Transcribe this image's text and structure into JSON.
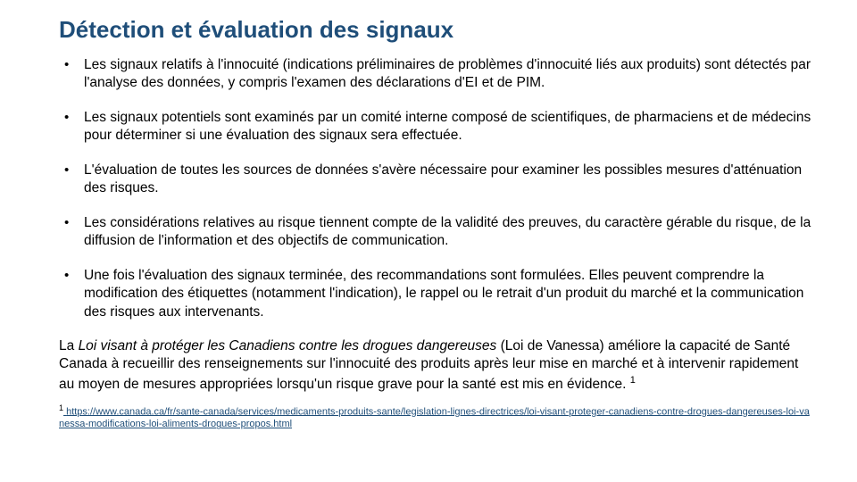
{
  "title": "Détection et évaluation des signaux",
  "bullets": [
    "Les signaux relatifs à l'innocuité (indications préliminaires de problèmes d'innocuité liés aux produits) sont détectés par l'analyse des données, y compris l'examen des déclarations d'EI et de PIM.",
    "Les signaux potentiels sont examinés par un comité interne composé de scientifiques, de pharmaciens et de médecins pour déterminer si une évaluation des signaux sera effectuée.",
    "L'évaluation de toutes les sources de données s'avère nécessaire pour examiner les possibles mesures d'atténuation des risques.",
    "Les considérations relatives au risque tiennent compte de la validité des preuves, du caractère gérable du risque, de la diffusion de l'information et des objectifs de communication.",
    "Une fois l'évaluation des signaux terminée, des recommandations sont formulées. Elles peuvent comprendre la modification des étiquettes (notamment l'indication), le rappel ou le retrait d'un produit du marché et la communication des risques aux intervenants."
  ],
  "paragraph_prefix": "La ",
  "paragraph_law": "Loi visant à protéger les Canadiens contre les drogues dangereuses",
  "paragraph_rest": " (Loi de Vanessa) améliore la capacité de Santé Canada à recueillir des renseignements sur l'innocuité des produits après leur mise en marché et à intervenir rapidement au moyen de mesures appropriées lorsqu'un risque grave pour la santé est mis en évidence. ",
  "paragraph_sup": "1",
  "footnote_sup": "1",
  "footnote_link": "https://www.canada.ca/fr/sante-canada/services/medicaments-produits-sante/legislation-lignes-directrices/loi-visant-proteger-canadiens-contre-drogues-dangereuses-loi-vanessa-modifications-loi-aliments-drogues-propos.html"
}
